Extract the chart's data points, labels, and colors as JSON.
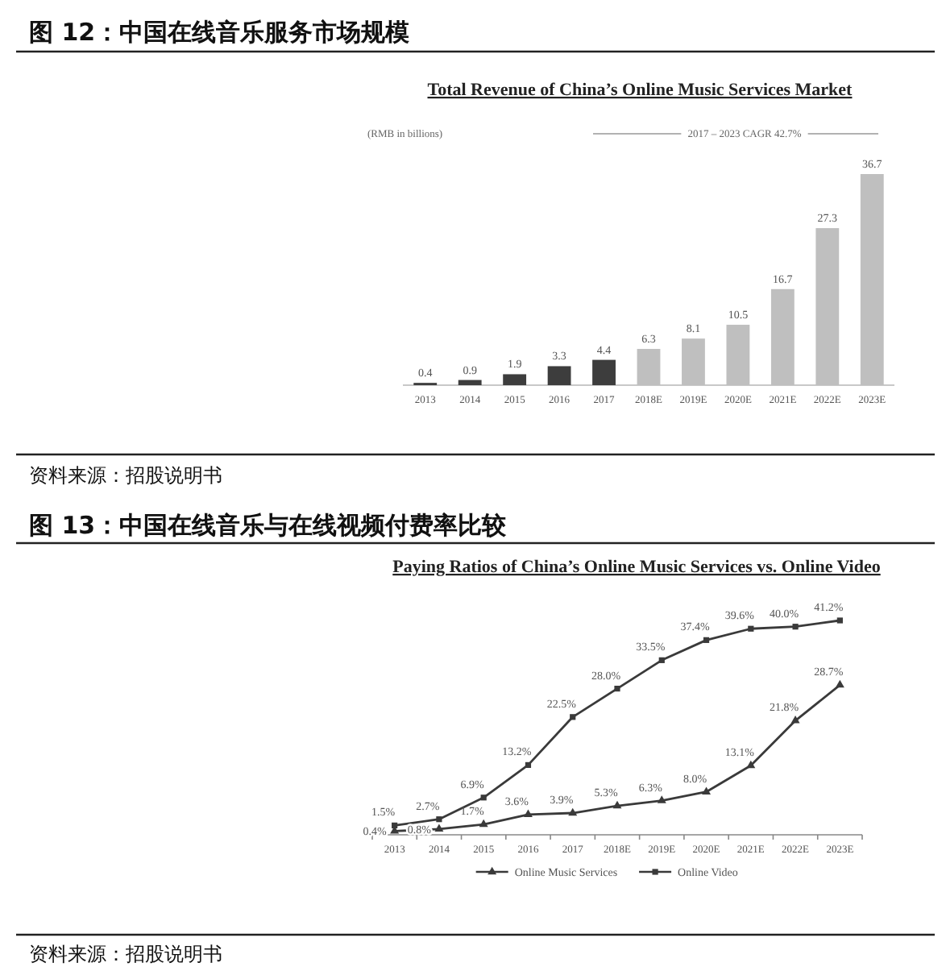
{
  "chart_data": [
    {
      "type": "bar",
      "title": "图 12：中国在线音乐服务市场规模",
      "subtitle": "Total Revenue of China’s Online Music Services Market",
      "ylabel": "(RMB in billions)",
      "annotations": [
        "2017 – 2023 CAGR 42.7%",
        "资料来源：招股说明书"
      ],
      "categories": [
        "2013",
        "2014",
        "2015",
        "2016",
        "2017",
        "2018E",
        "2019E",
        "2020E",
        "2021E",
        "2022E",
        "2023E"
      ],
      "values": [
        0.4,
        0.9,
        1.9,
        3.3,
        4.4,
        6.3,
        8.1,
        10.5,
        16.7,
        27.3,
        36.7
      ],
      "colors": [
        "#3d3d3d",
        "#3d3d3d",
        "#3d3d3d",
        "#3d3d3d",
        "#3d3d3d",
        "#bfbfbf",
        "#bfbfbf",
        "#bfbfbf",
        "#bfbfbf",
        "#bfbfbf",
        "#bfbfbf"
      ],
      "data_labels": true
    },
    {
      "type": "line",
      "title": "图 13：中国在线音乐与在线视频付费率比较",
      "subtitle": "Paying Ratios of China’s Online Music Services vs. Online Video",
      "annotations": [
        "资料来源：招股说明书"
      ],
      "categories": [
        "2013",
        "2014",
        "2015",
        "2016",
        "2017",
        "2018E",
        "2019E",
        "2020E",
        "2021E",
        "2022E",
        "2023E"
      ],
      "series": [
        {
          "name": "Online Music Services",
          "color": "#3a3a3a",
          "marker": "triangle",
          "values": [
            0.4,
            0.8,
            1.7,
            3.6,
            3.9,
            5.3,
            6.3,
            8.0,
            13.1,
            21.8,
            28.7
          ],
          "value_labels": [
            "0.4%",
            "0.8%",
            "1.7%",
            "3.6%",
            "3.9%",
            "5.3%",
            "6.3%",
            "8.0%",
            "13.1%",
            "21.8%",
            "28.7%"
          ]
        },
        {
          "name": "Online Video",
          "color": "#3a3a3a",
          "marker": "square",
          "values": [
            1.5,
            2.7,
            6.9,
            13.2,
            22.5,
            28.0,
            33.5,
            37.4,
            39.6,
            40.0,
            41.2
          ],
          "value_labels": [
            "1.5%",
            "2.7%",
            "6.9%",
            "13.2%",
            "22.5%",
            "28.0%",
            "33.5%",
            "37.4%",
            "39.6%",
            "40.0%",
            "41.2%"
          ]
        }
      ],
      "legend": "bottom"
    }
  ]
}
